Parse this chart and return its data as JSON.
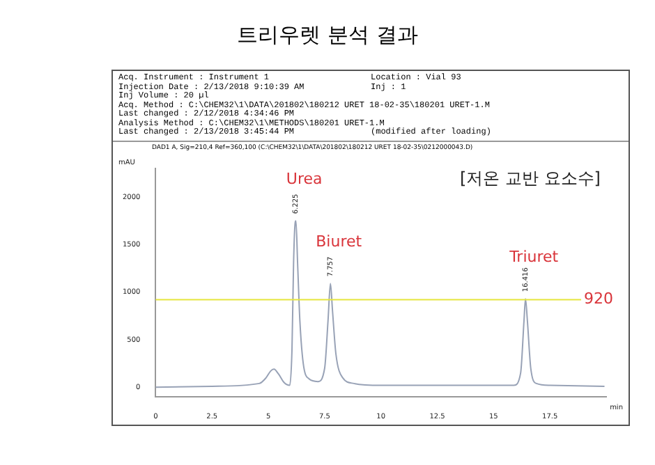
{
  "chart_data": {
    "type": "line",
    "title": "트리우렛 분석 결과",
    "xlabel": "min",
    "ylabel": "mAU",
    "xlim": [
      0,
      20
    ],
    "xticks": [
      0,
      2.5,
      5,
      7.5,
      10,
      12.5,
      15,
      17.5
    ],
    "ylim": [
      -100,
      2300
    ],
    "yticks": [
      0,
      500,
      1000,
      1500,
      2000
    ],
    "grid": false,
    "legend": false,
    "marker": "none",
    "line_style": "solid",
    "series": [
      {
        "color": "#98a2b6",
        "x": [
          0,
          2.5,
          4.6,
          4.9,
          5.1,
          5.25,
          5.45,
          5.7,
          5.95,
          6.05,
          6.12,
          6.18,
          6.225,
          6.3,
          6.4,
          6.55,
          6.8,
          7.2,
          7.5,
          7.65,
          7.757,
          7.85,
          8.0,
          8.3,
          8.8,
          10,
          12.5,
          15,
          15.9,
          16.2,
          16.35,
          16.416,
          16.5,
          16.65,
          16.9,
          17.5,
          19.9
        ],
        "values": [
          0,
          10,
          40,
          100,
          170,
          190,
          140,
          50,
          20,
          400,
          1300,
          1700,
          1750,
          1300,
          700,
          250,
          90,
          60,
          200,
          700,
          1090,
          800,
          350,
          100,
          40,
          20,
          20,
          20,
          20,
          150,
          700,
          930,
          700,
          200,
          40,
          20,
          10
        ]
      }
    ],
    "ref_lines": [
      {
        "axis": "y",
        "value": 920,
        "label": "920",
        "color": "#e6e63c"
      }
    ],
    "annotations": [
      "Acq. Instrument : Instrument 1",
      "Location : Vial 93",
      "Injection Date : 2/13/2018 9:10:39 AM",
      "Inj : 1",
      "Inj Volume : 20 µl",
      "Acq. Method : C:\\CHEM32\\1\\DATA\\201802\\180212 URET 18-02-35\\180201 URET-1.M",
      "Last changed : 2/12/2018 4:34:46 PM",
      "Analysis Method : C:\\CHEM32\\1\\METHODS\\180201 URET-1.M",
      "Last changed : 2/13/2018 3:45:44 PM",
      "(modified after loading)",
      "DAD1 A, Sig=210,4 Ref=360,100 (C:\\CHEM32\\1\\DATA\\201802\\180212 URET 18-02-35\\0212000043.D)",
      "[저온 교반 요소수]",
      {
        "text": "6.225",
        "x": 6.225,
        "y": 1750
      },
      {
        "text": "Urea",
        "x": 6.225,
        "y": 1750
      },
      {
        "text": "7.757",
        "x": 7.757,
        "y": 1090
      },
      {
        "text": "Biuret",
        "x": 7.757,
        "y": 1090
      },
      {
        "text": "16.416",
        "x": 16.416,
        "y": 930
      },
      {
        "text": "Triuret",
        "x": 16.416,
        "y": 930
      }
    ]
  }
}
